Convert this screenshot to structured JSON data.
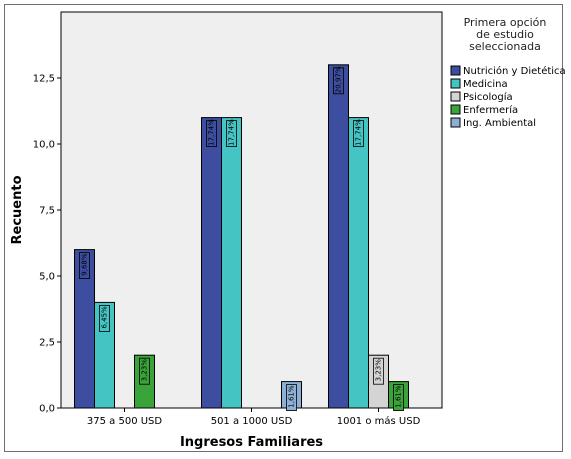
{
  "chart_data": {
    "type": "bar",
    "xlabel": "Ingresos Familiares",
    "ylabel": "Recuento",
    "ylim": [
      0,
      15
    ],
    "yticks": [
      "0,0",
      "2,5",
      "5,0",
      "7,5",
      "10,0",
      "12,5"
    ],
    "ytick_values": [
      0,
      2.5,
      5,
      7.5,
      10,
      12.5
    ],
    "categories": [
      "375 a 500 USD",
      "501 a 1000 USD",
      "1001 o más USD"
    ],
    "legend_title": "Primera opción de estudio seleccionada",
    "legend_title_lines": [
      "Primera opción",
      "de estudio",
      "seleccionada"
    ],
    "legend_position": "right",
    "series": [
      {
        "name": "Nutrición y Dietética",
        "color": "#3d4ea0",
        "values": [
          6,
          11,
          13
        ],
        "labels": [
          "9,68%",
          "17,74%",
          "20,97%"
        ]
      },
      {
        "name": "Medicina",
        "color": "#45c4c4",
        "values": [
          4,
          11,
          11
        ],
        "labels": [
          "6,45%",
          "17,74%",
          "17,74%"
        ]
      },
      {
        "name": "Psicología",
        "color": "#d4d4d4",
        "values": [
          0,
          0,
          2
        ],
        "labels": [
          "",
          "",
          "3,23%"
        ]
      },
      {
        "name": "Enfermería",
        "color": "#3aa33a",
        "values": [
          2,
          0,
          1
        ],
        "labels": [
          "3,23%",
          "",
          "1,61%"
        ]
      },
      {
        "name": "Ing. Ambiental",
        "color": "#8eb0d6",
        "values": [
          0,
          1,
          0
        ],
        "labels": [
          "",
          "1,61%",
          ""
        ]
      }
    ]
  }
}
